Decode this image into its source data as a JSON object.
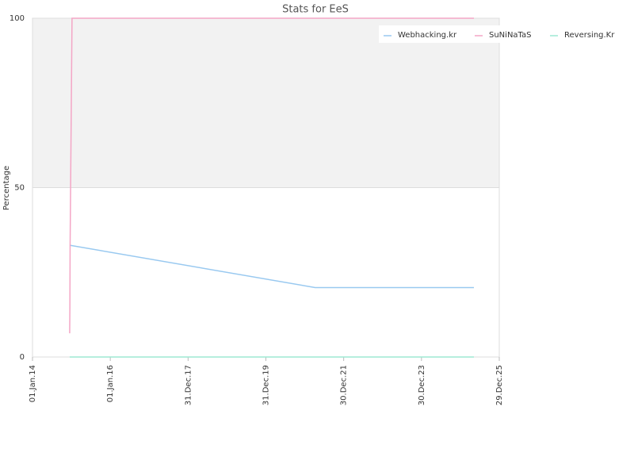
{
  "chart_data": {
    "type": "line",
    "title": "Stats for EeS",
    "y_label": "Percentage",
    "xlim": [
      "2014-01-01",
      "2025-12-29"
    ],
    "xticks": [
      {
        "value": "2014-01-01",
        "label": "01.Jan.14"
      },
      {
        "value": "2016-01-01",
        "label": "01.Jan.16"
      },
      {
        "value": "2017-12-31",
        "label": "31.Dec.17"
      },
      {
        "value": "2019-12-31",
        "label": "31.Dec.19"
      },
      {
        "value": "2021-12-30",
        "label": "30.Dec.21"
      },
      {
        "value": "2023-12-30",
        "label": "30.Dec.23"
      },
      {
        "value": "2025-12-29",
        "label": "29.Dec.25"
      }
    ],
    "ylim": [
      0,
      100
    ],
    "yticks": [
      0,
      50,
      100
    ],
    "grid": true,
    "shaded_band": {
      "from": 50,
      "to": 100,
      "color": "#f2f2f2"
    },
    "legend": "top-right",
    "series": [
      {
        "name": "Webhacking.kr",
        "color": "#99c9f0",
        "x": [
          "2014-12-16",
          "2021-04-06",
          "2025-05-05"
        ],
        "values": [
          33,
          20.5,
          20.5
        ]
      },
      {
        "name": "SuNiNaTaS",
        "color": "#f4a6c6",
        "x": [
          "2014-12-16",
          "2014-12-18",
          "2014-12-20",
          "2015-01-07",
          "2025-05-05"
        ],
        "values": [
          7,
          15,
          33,
          100,
          100
        ]
      },
      {
        "name": "Reversing.Kr",
        "color": "#9ee8d2",
        "x": [
          "2014-12-16",
          "2025-05-05"
        ],
        "values": [
          0,
          0
        ]
      }
    ]
  }
}
